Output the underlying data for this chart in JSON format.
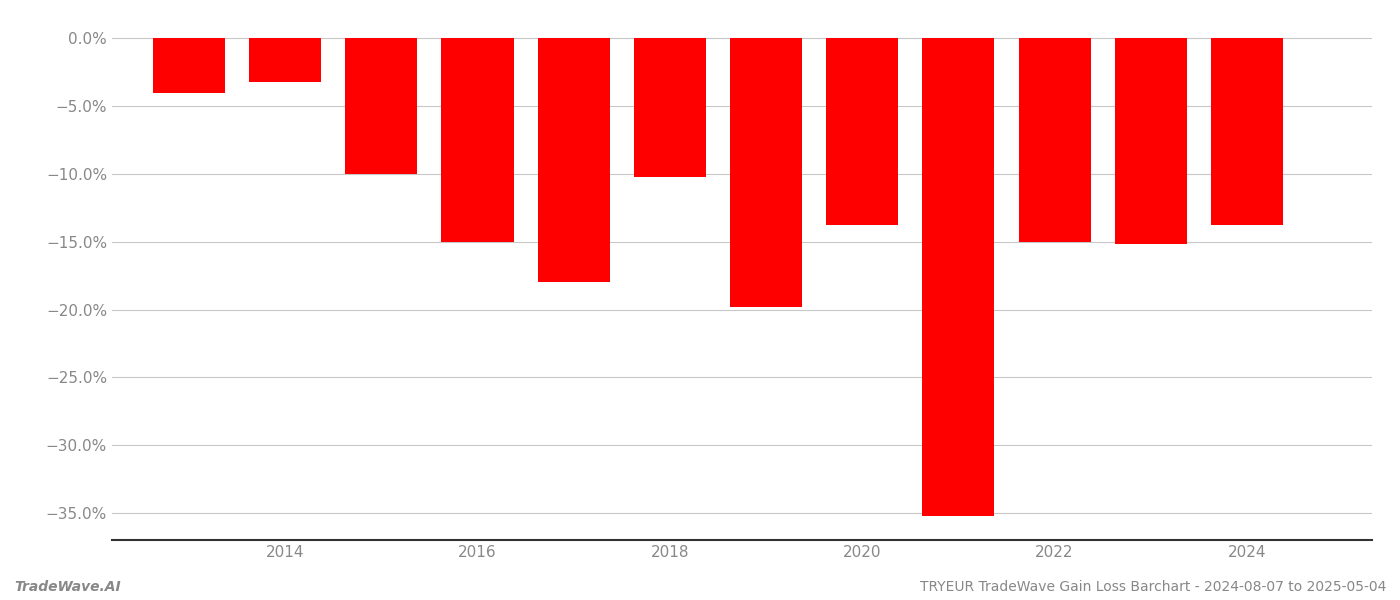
{
  "years": [
    2013,
    2014,
    2015,
    2016,
    2017,
    2018,
    2019,
    2020,
    2021,
    2022,
    2023,
    2024
  ],
  "values": [
    -4.0,
    -3.2,
    -10.0,
    -15.0,
    -18.0,
    -10.2,
    -19.8,
    -13.8,
    -35.2,
    -15.0,
    -15.2,
    -13.8
  ],
  "bar_color": "#ff0000",
  "background_color": "#ffffff",
  "grid_color": "#c8c8c8",
  "tick_color": "#888888",
  "ylim": [
    -37,
    1.5
  ],
  "yticks": [
    0.0,
    -5.0,
    -10.0,
    -15.0,
    -20.0,
    -25.0,
    -30.0,
    -35.0
  ],
  "xtick_positions": [
    2014,
    2016,
    2018,
    2020,
    2022,
    2024
  ],
  "xtick_labels": [
    "2014",
    "2016",
    "2018",
    "2020",
    "2022",
    "2024"
  ],
  "bar_width": 0.75,
  "xlim": [
    2012.2,
    2025.3
  ],
  "footer_left": "TradeWave.AI",
  "footer_right": "TRYEUR TradeWave Gain Loss Barchart - 2024-08-07 to 2025-05-04",
  "footer_fontsize": 10,
  "tick_fontsize": 11
}
